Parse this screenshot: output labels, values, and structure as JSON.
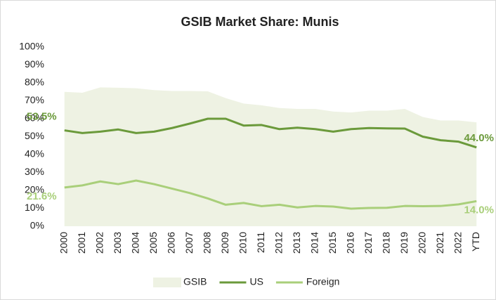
{
  "chart_data": {
    "type": "line",
    "title": "GSIB Market Share: Munis",
    "categories": [
      "2000",
      "2001",
      "2002",
      "2003",
      "2004",
      "2005",
      "2006",
      "2007",
      "2008",
      "2009",
      "2010",
      "2011",
      "2012",
      "2013",
      "2014",
      "2015",
      "2016",
      "2017",
      "2018",
      "2019",
      "2020",
      "2021",
      "2022",
      "YTD"
    ],
    "series": [
      {
        "name": "GSIB",
        "kind": "area",
        "color": "#eef2e3",
        "values": [
          75,
          74.5,
          77.5,
          77.3,
          77,
          76,
          75.5,
          75.5,
          75.3,
          71.5,
          68.5,
          67.5,
          66,
          65.5,
          65.5,
          64,
          63.5,
          64.5,
          64.5,
          65.5,
          61,
          59,
          59,
          58
        ]
      },
      {
        "name": "US",
        "kind": "line",
        "color": "#6b9a3b",
        "values": [
          53.5,
          52,
          52.8,
          54,
          52,
          52.8,
          54.8,
          57.3,
          60,
          60,
          56.2,
          56.5,
          54.2,
          55,
          54.2,
          52.8,
          54.2,
          54.8,
          54.6,
          54.5,
          50,
          48,
          47.2,
          44.0
        ],
        "value_labels": [
          "53.5%",
          null,
          null,
          null,
          null,
          null,
          null,
          null,
          null,
          null,
          null,
          null,
          null,
          null,
          null,
          null,
          null,
          null,
          null,
          null,
          null,
          null,
          null,
          "44.0%"
        ]
      },
      {
        "name": "Foreign",
        "kind": "line",
        "color": "#a9cf7a",
        "values": [
          21.6,
          22.8,
          25,
          23.5,
          25.5,
          23.5,
          21,
          18.5,
          15.5,
          12,
          13,
          11.2,
          12,
          10.5,
          11.3,
          11,
          9.8,
          10.2,
          10.3,
          11.3,
          11.2,
          11.3,
          12.2,
          14.0
        ],
        "value_labels": [
          "21.6%",
          null,
          null,
          null,
          null,
          null,
          null,
          null,
          null,
          null,
          null,
          null,
          null,
          null,
          null,
          null,
          null,
          null,
          null,
          null,
          null,
          null,
          null,
          "14.0%"
        ]
      }
    ],
    "ylim": [
      0,
      100
    ],
    "yticks": [
      {
        "value": 0,
        "label": "0%"
      },
      {
        "value": 10,
        "label": "10%"
      },
      {
        "value": 20,
        "label": "20%"
      },
      {
        "value": 30,
        "label": "30%"
      },
      {
        "value": 40,
        "label": "40%"
      },
      {
        "value": 50,
        "label": "50%"
      },
      {
        "value": 60,
        "label": "60%"
      },
      {
        "value": 70,
        "label": "70%"
      },
      {
        "value": 80,
        "label": "80%"
      },
      {
        "value": 90,
        "label": "90%"
      },
      {
        "value": 100,
        "label": "100%"
      }
    ],
    "grid": false,
    "legend": "bottom"
  }
}
